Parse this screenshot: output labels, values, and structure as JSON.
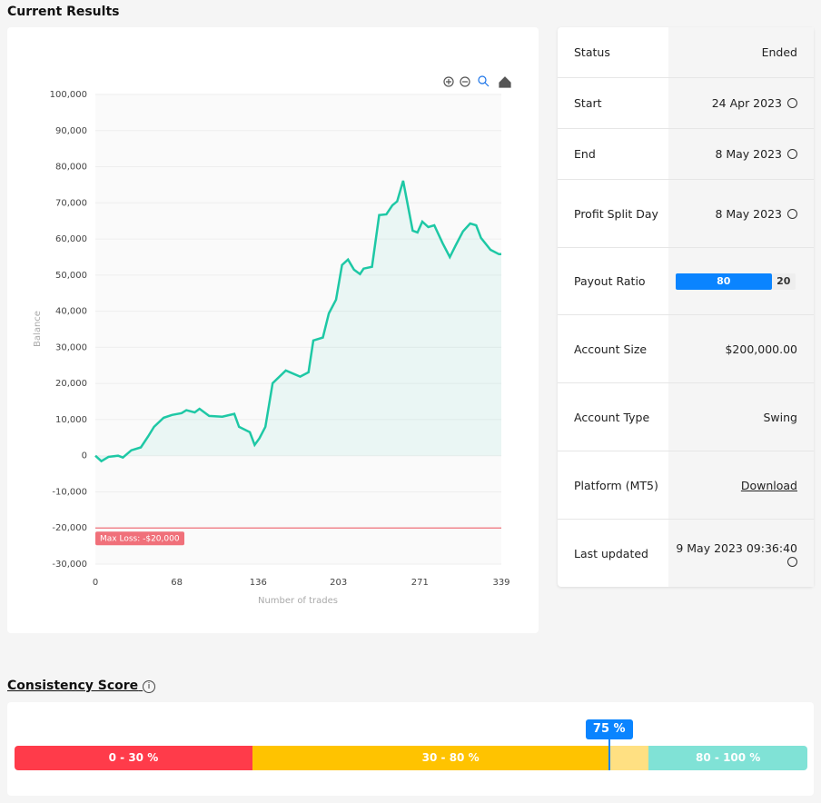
{
  "header": {
    "title": "Current Results"
  },
  "chart_data": {
    "type": "line",
    "x": [
      0,
      5,
      11,
      19,
      23,
      30,
      38,
      44,
      49,
      57,
      64,
      72,
      76,
      83,
      87,
      95,
      106,
      116,
      120,
      129,
      133,
      137,
      142,
      148,
      159,
      171,
      178,
      182,
      190,
      195,
      201,
      206,
      211,
      216,
      221,
      224,
      231,
      237,
      243,
      248,
      252,
      257,
      265,
      269,
      273,
      278,
      283,
      290,
      296,
      301,
      307,
      313,
      318,
      322,
      330,
      337,
      339
    ],
    "values": [
      0,
      -1500,
      -300,
      0,
      -500,
      1500,
      2300,
      5300,
      8000,
      10500,
      11300,
      11800,
      12600,
      12000,
      13000,
      11000,
      10800,
      11600,
      8000,
      6500,
      3000,
      4800,
      8000,
      20100,
      23600,
      21900,
      23100,
      31900,
      32700,
      39400,
      43200,
      52800,
      54300,
      51500,
      50300,
      51800,
      52300,
      66600,
      66800,
      69300,
      70400,
      76100,
      62300,
      61800,
      64800,
      63300,
      63800,
      58800,
      55000,
      58300,
      62100,
      64300,
      63800,
      60300,
      57000,
      55800,
      55800
    ],
    "color": "#1ec8a5",
    "xlim": [
      0,
      339
    ],
    "xticks": [
      0,
      68,
      136,
      203,
      271,
      339
    ],
    "ylim": [
      -30000,
      100000
    ],
    "yticks": [
      {
        "value": -30000,
        "label": "-30,000"
      },
      {
        "value": -20000,
        "label": "-20,000"
      },
      {
        "value": -10000,
        "label": "-10,000"
      },
      0,
      {
        "value": 10000,
        "label": "10,000"
      },
      {
        "value": 20000,
        "label": "20,000"
      },
      {
        "value": 30000,
        "label": "30,000"
      },
      {
        "value": 40000,
        "label": "40,000"
      },
      {
        "value": 50000,
        "label": "50,000"
      },
      {
        "value": 60000,
        "label": "60,000"
      },
      {
        "value": 70000,
        "label": "70,000"
      },
      {
        "value": 80000,
        "label": "80,000"
      },
      {
        "value": 90000,
        "label": "90,000"
      },
      {
        "value": 100000,
        "label": "100,000"
      }
    ],
    "xlabel": "Number of trades",
    "ylabel": "Balance",
    "grid": true,
    "annotation": {
      "value": -20000,
      "label": "Max Loss: -$20,000",
      "color": "#f0707a"
    }
  },
  "info": {
    "rows": [
      {
        "label": "Status",
        "value": "Ended"
      },
      {
        "label": "Start",
        "value": "24 Apr 2023",
        "icon": "timer"
      },
      {
        "label": "End",
        "value": "8 May 2023",
        "icon": "timer"
      },
      {
        "label": "Profit Split Day",
        "value": "8 May 2023",
        "icon": "timer"
      },
      {
        "label": "Payout Ratio",
        "ratio": [
          80,
          20
        ]
      },
      {
        "label": "Account Size",
        "value": "$200,000.00"
      },
      {
        "label": "Account Type",
        "value": "Swing"
      },
      {
        "label": "Platform (MT5)",
        "value": "Download",
        "link": true
      },
      {
        "label": "Last updated",
        "value": "9 May 2023 09:36:40",
        "icon": "timer"
      }
    ]
  },
  "consistency": {
    "title": "Consistency Score",
    "segments": [
      {
        "label": "0 - 30 %",
        "range": [
          0,
          30
        ],
        "color": "#ff3b4a"
      },
      {
        "label": "30 - 80 %",
        "range": [
          30,
          80
        ],
        "color": "#ffc300"
      },
      {
        "label": "80 - 100 %",
        "range": [
          80,
          100
        ],
        "color": "#80e2d6"
      }
    ],
    "score": {
      "value": 75,
      "label": "75 %"
    }
  }
}
